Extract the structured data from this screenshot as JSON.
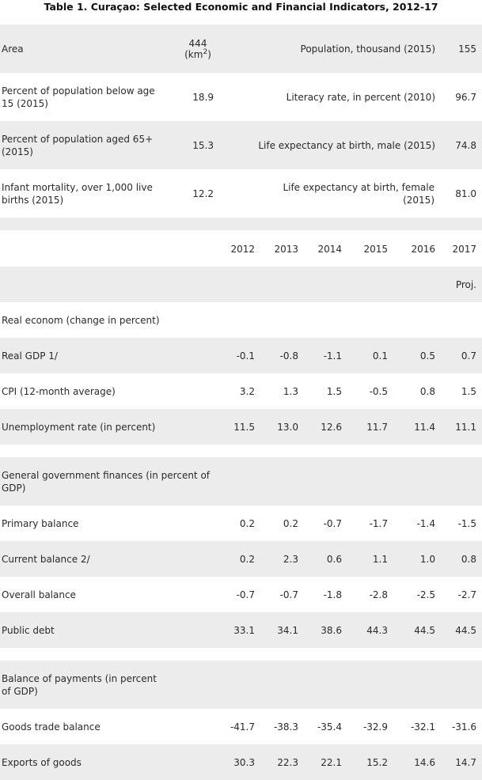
{
  "title": "Table 1. Curaçao: Selected Economic and Financial Indicators, 2012-17",
  "info": {
    "area_label": "Area",
    "area_value": "444",
    "area_unit": "(km",
    "area_unit_sup": "2",
    "area_unit_close": ")",
    "population_label": "Population, thousand (2015)",
    "population_value": "155",
    "below15_label": "Percent of population below age 15 (2015)",
    "below15_value": "18.9",
    "literacy_label": "Literacy rate, in percent (2010)",
    "literacy_value": "96.7",
    "aged65_label": "Percent of population aged 65+ (2015)",
    "aged65_value": "15.3",
    "life_male_label": "Life expectancy at birth, male (2015)",
    "life_male_value": "74.8",
    "infant_label": "Infant mortality, over 1,000 live births (2015)",
    "infant_value": "12.2",
    "life_female_label": "Life expectancy at birth, female (2015)",
    "life_female_value": "81.0"
  },
  "years": [
    "2012",
    "2013",
    "2014",
    "2015",
    "2016",
    "2017"
  ],
  "proj_label": "Proj.",
  "sections": [
    {
      "header": "Real econom (change in percent)",
      "rows": [
        {
          "label": "Real GDP 1/",
          "values": [
            "-0.1",
            "-0.8",
            "-1.1",
            "0.1",
            "0.5",
            "0.7"
          ]
        },
        {
          "label": "CPI (12-month average)",
          "values": [
            "3.2",
            "1.3",
            "1.5",
            "-0.5",
            "0.8",
            "1.5"
          ]
        },
        {
          "label": "Unemployment rate (in percent)",
          "values": [
            "11.5",
            "13.0",
            "12.6",
            "11.7",
            "11.4",
            "11.1"
          ]
        }
      ]
    },
    {
      "header": "General government finances (in percent of GDP)",
      "rows": [
        {
          "label": "Primary balance",
          "values": [
            "0.2",
            "0.2",
            "-0.7",
            "-1.7",
            "-1.4",
            "-1.5"
          ]
        },
        {
          "label": "Current balance 2/",
          "values": [
            "0.2",
            "2.3",
            "0.6",
            "1.1",
            "1.0",
            "0.8"
          ]
        },
        {
          "label": "Overall balance",
          "values": [
            "-0.7",
            "-0.7",
            "-1.8",
            "-2.8",
            "-2.5",
            "-2.7"
          ]
        },
        {
          "label": "Public debt",
          "values": [
            "33.1",
            "34.1",
            "38.6",
            "44.3",
            "44.5",
            "44.5"
          ]
        }
      ]
    },
    {
      "header": "Balance of payments (in percent of GDP)",
      "rows": [
        {
          "label": "Goods trade balance",
          "values": [
            "-41.7",
            "-38.3",
            "-35.4",
            "-32.9",
            "-32.1",
            "-31.6"
          ]
        },
        {
          "label": "Exports of goods",
          "values": [
            "30.3",
            "22.3",
            "22.1",
            "15.2",
            "14.6",
            "14.7"
          ]
        }
      ]
    }
  ]
}
